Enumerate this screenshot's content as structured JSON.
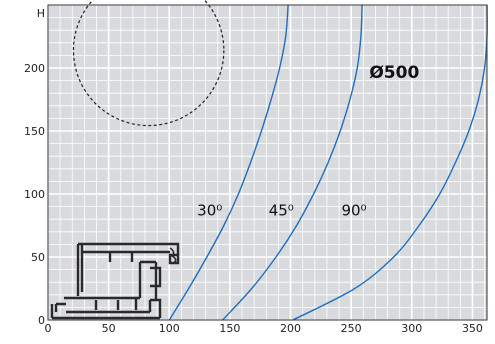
{
  "chart_data": {
    "type": "line",
    "title": "",
    "xlabel": "",
    "ylabel": "H",
    "xlim": [
      0,
      362
    ],
    "ylim": [
      0,
      250
    ],
    "grid": true,
    "x_ticks": [
      0,
      50,
      100,
      150,
      200,
      250,
      300,
      350
    ],
    "y_ticks": [
      0,
      50,
      100,
      150,
      200
    ],
    "annotation": "Ø500",
    "series": [
      {
        "name": "30⁰",
        "label_at": [
          123,
          83
        ],
        "points": [
          [
            100,
            0
          ],
          [
            116,
            25
          ],
          [
            131,
            50
          ],
          [
            145,
            75
          ],
          [
            157,
            100
          ],
          [
            167,
            125
          ],
          [
            176,
            150
          ],
          [
            184,
            175
          ],
          [
            191,
            200
          ],
          [
            196,
            225
          ],
          [
            198,
            250
          ]
        ]
      },
      {
        "name": "45⁰",
        "label_at": [
          182,
          83
        ],
        "points": [
          [
            144,
            0
          ],
          [
            168,
            25
          ],
          [
            188,
            50
          ],
          [
            205,
            75
          ],
          [
            219,
            100
          ],
          [
            231,
            125
          ],
          [
            241,
            150
          ],
          [
            249,
            175
          ],
          [
            255,
            200
          ],
          [
            258,
            225
          ],
          [
            259,
            250
          ]
        ]
      },
      {
        "name": "90⁰",
        "label_at": [
          242,
          83
        ],
        "points": [
          [
            202,
            0
          ],
          [
            253,
            25
          ],
          [
            285,
            50
          ],
          [
            306,
            75
          ],
          [
            323,
            100
          ],
          [
            336,
            125
          ],
          [
            347,
            150
          ],
          [
            355,
            175
          ],
          [
            360,
            200
          ],
          [
            362,
            225
          ],
          [
            362,
            250
          ]
        ]
      }
    ],
    "reference_circle": {
      "cx": 83,
      "cy": 214,
      "r": 62
    },
    "colors": {
      "background": "#d8dadd",
      "grid": "#ffffff",
      "curve": "#1f6fc0",
      "frame": "#333333"
    }
  }
}
